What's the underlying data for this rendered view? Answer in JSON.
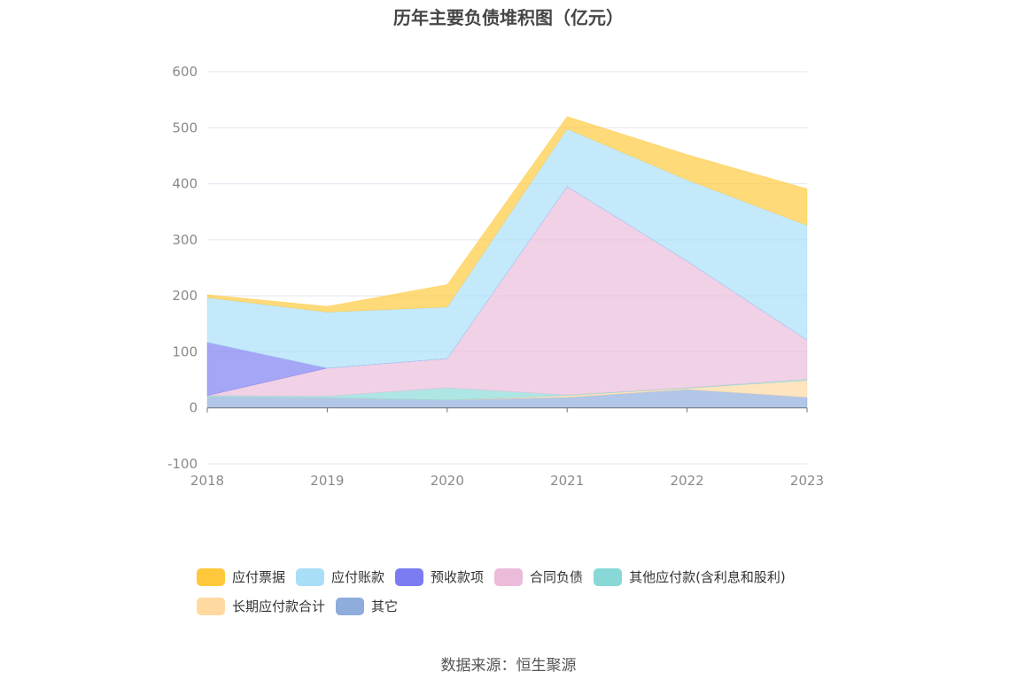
{
  "chart_data": {
    "type": "area",
    "stacked": true,
    "title": "历年主要负债堆积图（亿元）",
    "source": "数据来源：恒生聚源",
    "categories": [
      "2018",
      "2019",
      "2020",
      "2021",
      "2022",
      "2023"
    ],
    "ylim": [
      -100,
      600
    ],
    "yticks": [
      -100,
      0,
      100,
      200,
      300,
      400,
      500,
      600
    ],
    "grid": true,
    "legend_position": "bottom",
    "series": [
      {
        "name": "应付票据",
        "color": "#FFC83A",
        "values": [
          5,
          10,
          40,
          22,
          45,
          65
        ]
      },
      {
        "name": "应付账款",
        "color": "#A8DFF7",
        "values": [
          80,
          100,
          92,
          103,
          145,
          205
        ]
      },
      {
        "name": "预收款项",
        "color": "#7C7CF2",
        "values": [
          95,
          0,
          0,
          0,
          0,
          0
        ]
      },
      {
        "name": "合同负债",
        "color": "#EBBBD9",
        "values": [
          0,
          50,
          52,
          372,
          226,
          70
        ]
      },
      {
        "name": "其他应付款(含利息和股利)",
        "color": "#88D8D8",
        "values": [
          2,
          3,
          22,
          1,
          1,
          2
        ]
      },
      {
        "name": "长期应付款合计",
        "color": "#FFD9A0",
        "values": [
          0,
          0,
          0,
          3,
          2,
          30
        ]
      },
      {
        "name": "其它",
        "color": "#8EACDC",
        "values": [
          20,
          18,
          14,
          19,
          33,
          19
        ]
      }
    ]
  }
}
